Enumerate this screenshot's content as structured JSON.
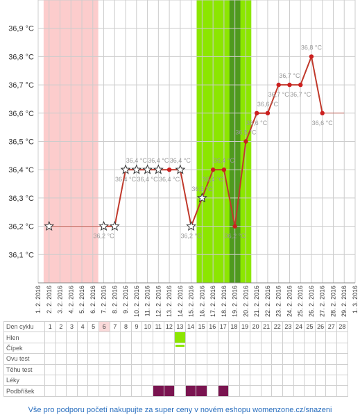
{
  "chart_data": {
    "type": "line",
    "x_labels": [
      "1. 2. 2016",
      "2. 2. 2016",
      "3. 2. 2016",
      "4. 2. 2016",
      "5. 2. 2016",
      "6. 2. 2016",
      "7. 2. 2016",
      "8. 2. 2016",
      "9. 2. 2016",
      "10. 2. 2016",
      "11. 2. 2016",
      "12. 2. 2016",
      "13. 2. 2016",
      "14. 2. 2016",
      "15. 2. 2016",
      "16. 2. 2016",
      "17. 2. 2016",
      "18. 2. 2016",
      "19. 2. 2016",
      "20. 2. 2016",
      "21. 2. 2016",
      "22. 2. 2016",
      "23. 2. 2016",
      "24. 2. 2016",
      "25. 2. 2016",
      "26. 2. 2016",
      "27. 2. 2016",
      "28. 2. 2016",
      "29. 2. 2016",
      "1. 3. 2016"
    ],
    "y_ticks": [
      "36,1 °C",
      "36,2 °C",
      "36,3 °C",
      "36,4 °C",
      "36,5 °C",
      "36,6 °C",
      "36,7 °C",
      "36,8 °C",
      "36,9 °C"
    ],
    "ylim": [
      36.0,
      37.0
    ],
    "series": [
      {
        "points": [
          {
            "day": 2,
            "value": 36.2,
            "star": true
          },
          {
            "day": 7,
            "value": 36.2,
            "star": true,
            "label": "36,2 °C"
          },
          {
            "day": 8,
            "value": 36.2,
            "star": true
          },
          {
            "day": 9,
            "value": 36.4,
            "star": true,
            "label": "36,4 °C"
          },
          {
            "day": 10,
            "value": 36.4,
            "star": true,
            "label": "36,4 °C"
          },
          {
            "day": 11,
            "value": 36.4,
            "star": true,
            "label": "36,4 °C"
          },
          {
            "day": 12,
            "value": 36.4,
            "star": true,
            "label": "36,4 °C"
          },
          {
            "day": 13,
            "value": 36.4,
            "star": false,
            "label": "36,4 °C"
          },
          {
            "day": 14,
            "value": 36.4,
            "star": true,
            "label": "36,4 °C"
          },
          {
            "day": 15,
            "value": 36.2,
            "star": true,
            "label": "36,2 °C"
          },
          {
            "day": 16,
            "value": 36.3,
            "star": true,
            "label": "36,3 °C"
          },
          {
            "day": 17,
            "value": 36.4,
            "star": false,
            "label": "36,4 °C"
          },
          {
            "day": 18,
            "value": 36.4,
            "star": false,
            "label": "36,4 °C"
          },
          {
            "day": 19,
            "value": 36.2,
            "star": false,
            "label": "36,2 °C"
          },
          {
            "day": 20,
            "value": 36.5,
            "star": false,
            "label": "36,5 °C"
          },
          {
            "day": 21,
            "value": 36.6,
            "star": false,
            "label": "36,6 °C"
          },
          {
            "day": 22,
            "value": 36.6,
            "star": false,
            "label": "36,6 °C"
          },
          {
            "day": 23,
            "value": 36.7,
            "star": false,
            "label": "36,7 °C"
          },
          {
            "day": 24,
            "value": 36.7,
            "star": false,
            "label": "36,7 °C"
          },
          {
            "day": 25,
            "value": 36.7,
            "star": false,
            "label": "36,7 °C"
          },
          {
            "day": 26,
            "value": 36.8,
            "star": false,
            "label": "36,8 °C"
          },
          {
            "day": 27,
            "value": 36.6,
            "star": false,
            "label": "36,6 °C"
          }
        ],
        "interpolated_segments": [
          [
            2,
            7
          ],
          [
            27,
            29
          ]
        ]
      }
    ],
    "bands": [
      {
        "from_day": 1.5,
        "to_day": 6.5,
        "color": "#fccccc"
      },
      {
        "from_day": 15.5,
        "to_day": 20.5,
        "color": "#8ce600"
      },
      {
        "from_day": 18.5,
        "to_day": 19.5,
        "color": "#4f9a1e"
      }
    ],
    "colors": {
      "line": "#c0392b",
      "marker": "#cc1f1f",
      "grid": "#cccccc",
      "label": "#999999"
    }
  },
  "table": {
    "rows": [
      {
        "label": "Den cyklu",
        "type": "days"
      },
      {
        "label": "Hlen",
        "type": "hlen"
      },
      {
        "label": "Čípek",
        "type": "cipek"
      },
      {
        "label": "Ovu test",
        "type": "empty"
      },
      {
        "label": "Těhu test",
        "type": "empty"
      },
      {
        "label": "Léky",
        "type": "empty"
      },
      {
        "label": "Podbříšek",
        "type": "podbrisek"
      }
    ],
    "days": [
      "1",
      "2",
      "3",
      "4",
      "5",
      "6",
      "7",
      "8",
      "9",
      "10",
      "11",
      "12",
      "13",
      "14",
      "15",
      "16",
      "17",
      "18",
      "19",
      "20",
      "21",
      "22",
      "23",
      "24",
      "25",
      "26",
      "27",
      "28"
    ],
    "highlight_day": 6,
    "hlen_days": [
      13
    ],
    "cipek_days": [
      13
    ],
    "podbrisek_days": [
      11,
      12,
      14,
      15,
      17
    ]
  },
  "footer": {
    "text": "Vše pro podporu početí nakupujte za super ceny v novém eshopu womenzone.cz/snazeni"
  }
}
